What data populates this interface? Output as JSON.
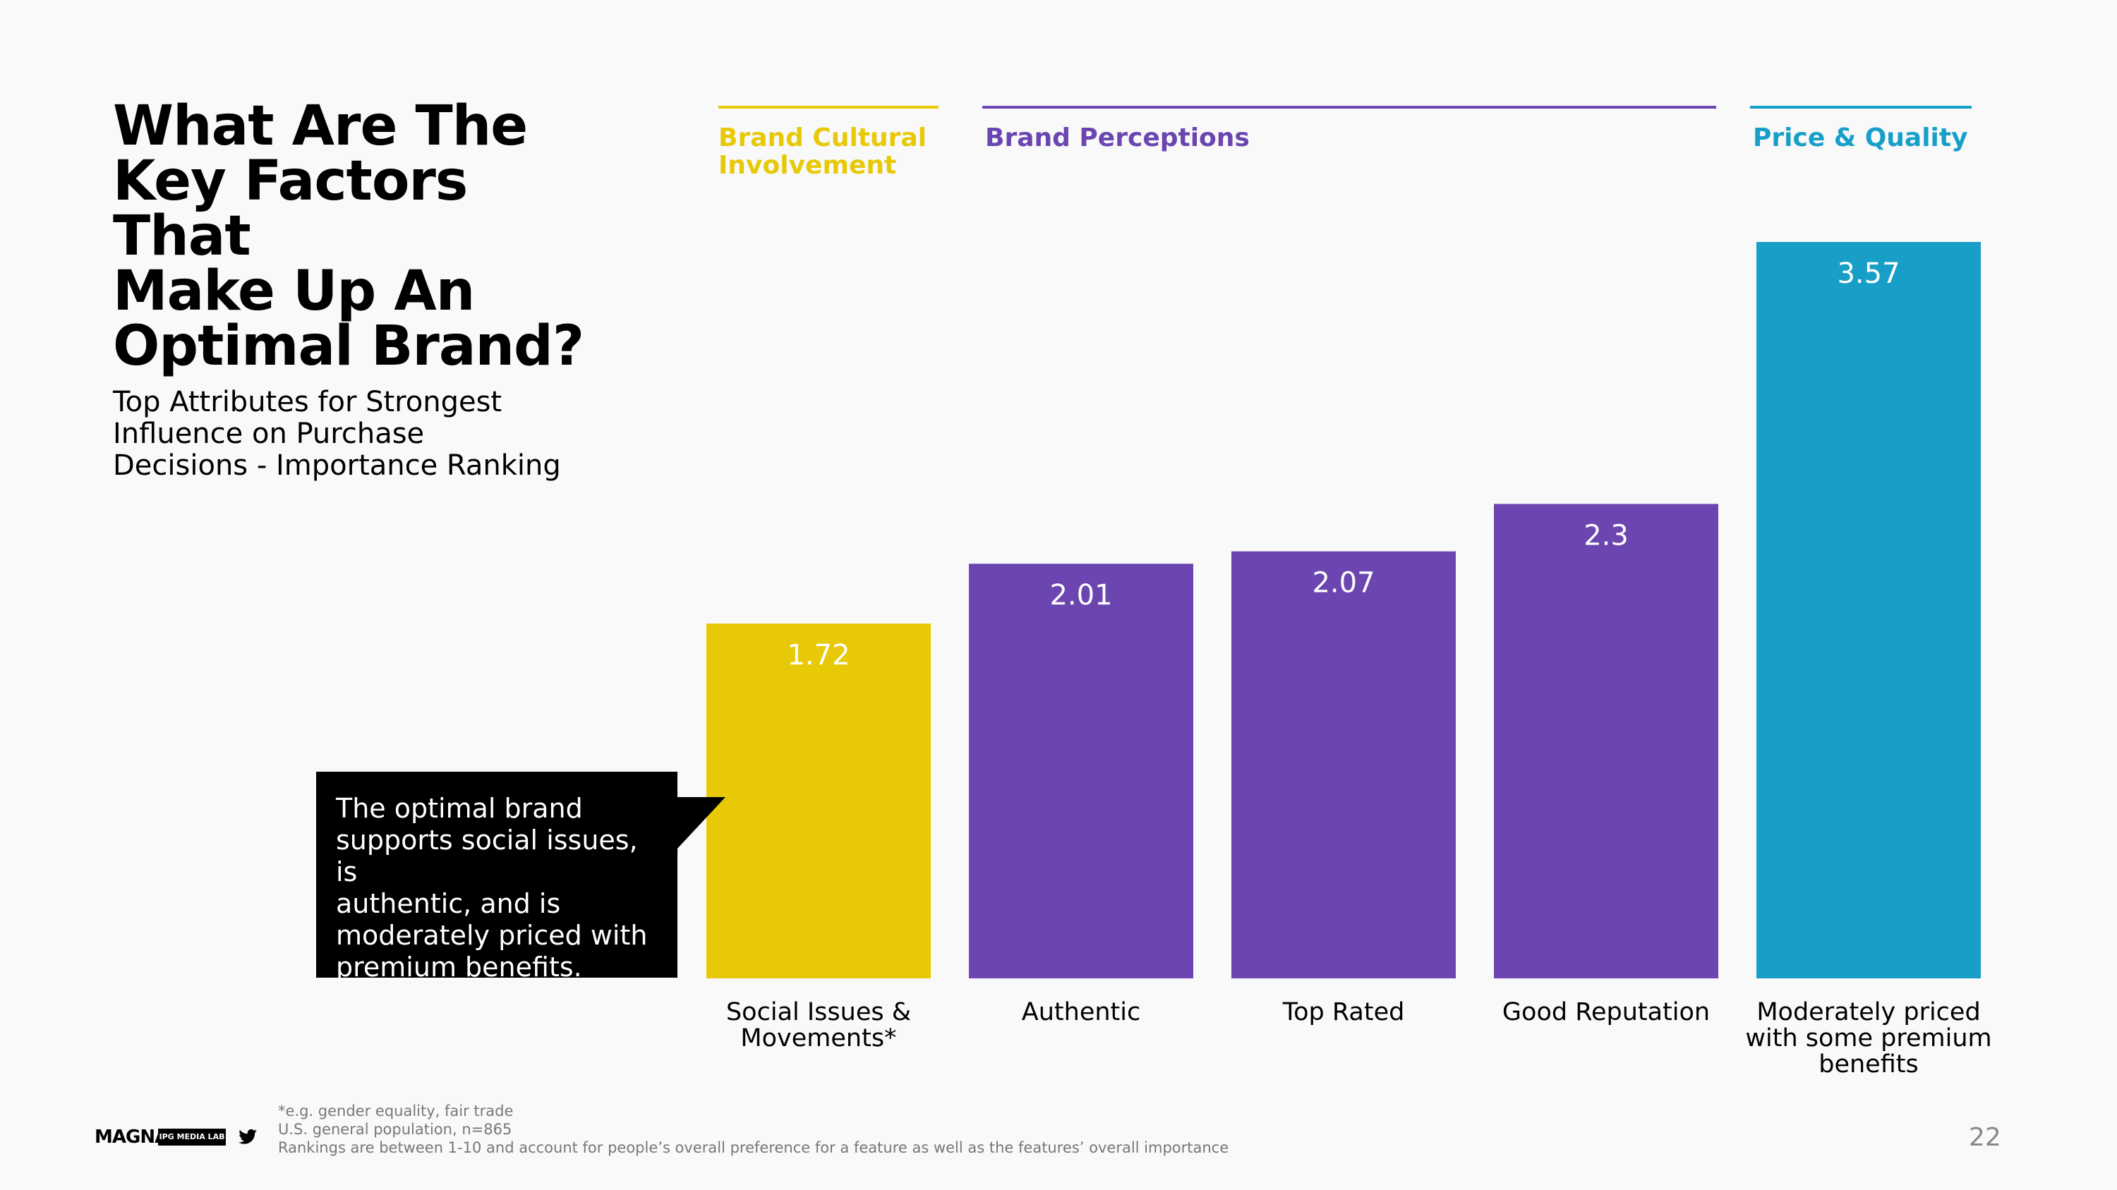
{
  "title_lines": [
    "What Are The",
    "Key Factors That",
    "Make Up An",
    "Optimal Brand?"
  ],
  "subtitle_lines": [
    "Top Attributes for Strongest",
    "Influence on Purchase",
    "Decisions - Importance Ranking"
  ],
  "groups": [
    {
      "label_lines": [
        "Brand Cultural",
        "Involvement"
      ],
      "color": "#e8c907"
    },
    {
      "label_lines": [
        "Brand Perceptions"
      ],
      "color": "#6b45b0"
    },
    {
      "label_lines": [
        "Price & Quality"
      ],
      "color": "#189fc8"
    }
  ],
  "callout_lines": [
    "The optimal brand",
    "supports social issues, is",
    "authentic, and is",
    "moderately priced with",
    "premium benefits."
  ],
  "footnotes": [
    "*e.g. gender equality, fair trade",
    "U.S. general population, n=865",
    "Rankings are between 1-10 and account for people’s overall preference for a feature as well as the features’ overall importance"
  ],
  "page_number": "22",
  "logos": {
    "brand": "MAGNA",
    "lab": "IPG MEDIA LAB",
    "social_icon": "twitter-icon"
  },
  "chart_data": {
    "type": "bar",
    "categories": [
      "Social Issues & Movements*",
      "Authentic",
      "Top Rated",
      "Good Reputation",
      "Moderately priced with some premium benefits"
    ],
    "category_label_lines": [
      [
        "Social Issues &",
        "Movements*"
      ],
      [
        "Authentic"
      ],
      [
        "Top Rated"
      ],
      [
        "Good Reputation"
      ],
      [
        "Moderately priced",
        "with some premium",
        "benefits"
      ]
    ],
    "values": [
      1.72,
      2.01,
      2.07,
      2.3,
      3.57
    ],
    "value_labels": [
      "1.72",
      "2.01",
      "2.07",
      "2.3",
      "3.57"
    ],
    "bar_colors": [
      "#e8c907",
      "#6b45b0",
      "#6b45b0",
      "#6b45b0",
      "#189fc8"
    ],
    "ylim": [
      0,
      3.57
    ],
    "grid": false,
    "xlabel": "",
    "ylabel": ""
  }
}
